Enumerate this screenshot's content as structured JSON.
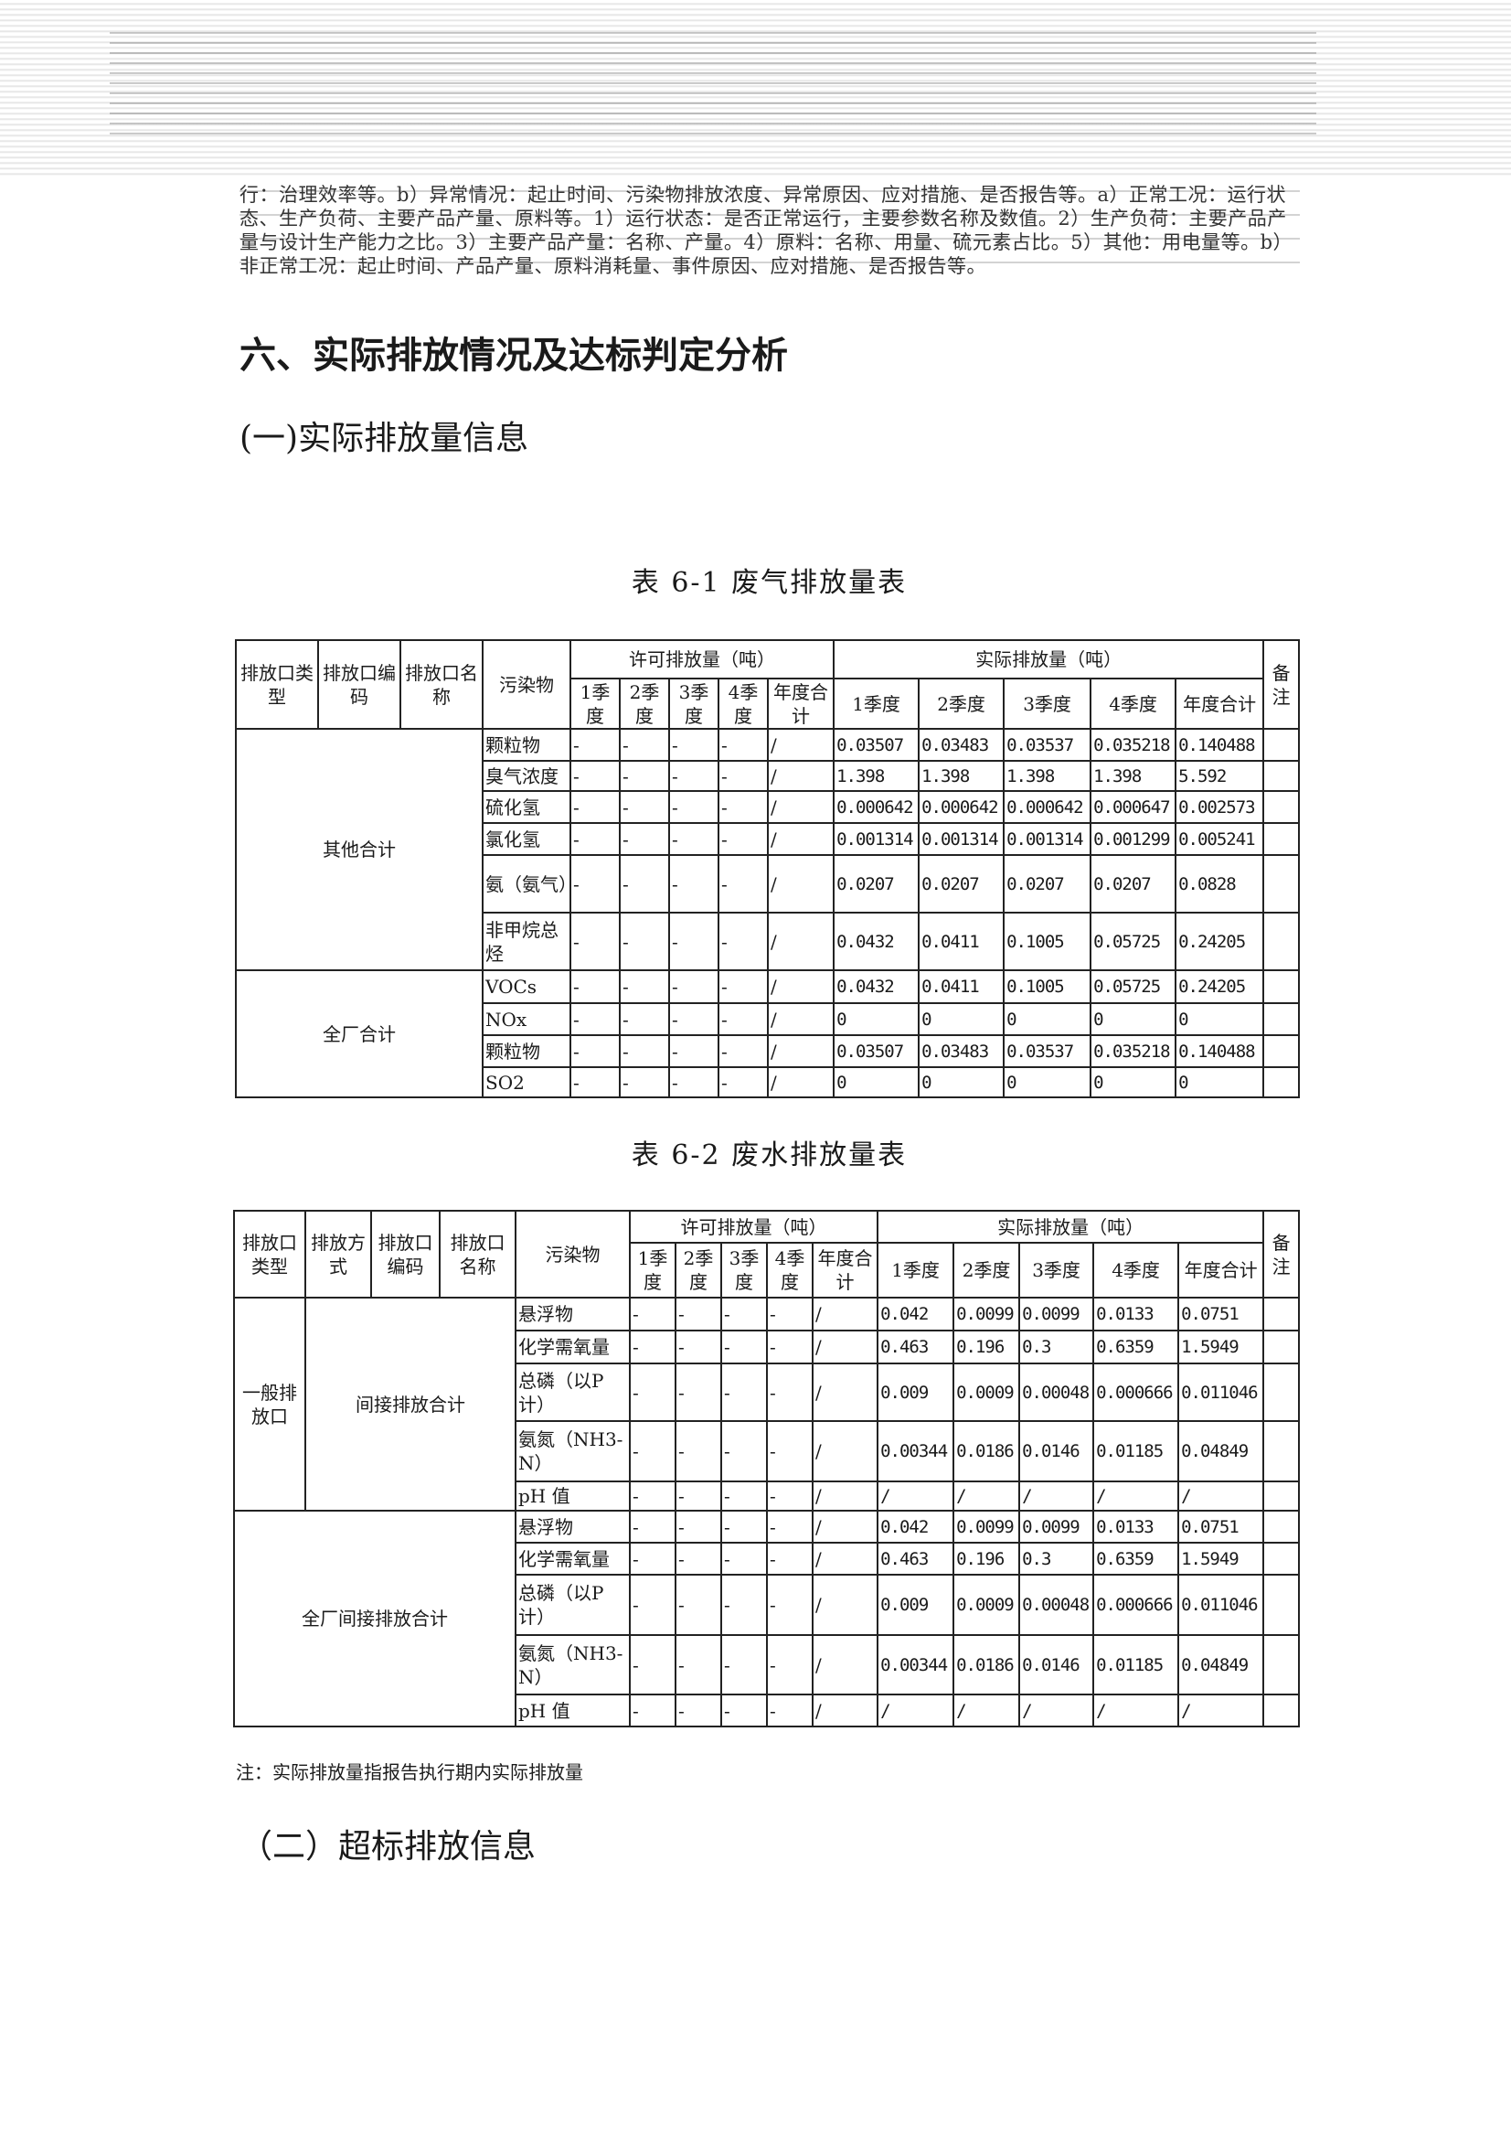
{
  "paragraph": "行：治理效率等。b）异常情况：起止时间、污染物排放浓度、异常原因、应对措施、是否报告等。a）正常工况：运行状态、生产负荷、主要产品产量、原料等。1）运行状态：是否正常运行，主要参数名称及数值。2）生产负荷：主要产品产量与设计生产能力之比。3）主要产品产量：名称、产量。4）原料：名称、用量、硫元素占比。5）其他：用电量等。b）非正常工况：起止时间、产品产量、原料消耗量、事件原因、应对措施、是否报告等。",
  "section_title": "六、实际排放情况及达标判定分析",
  "subsection_1": "(一)实际排放量信息",
  "table1": {
    "caption": "表 6-1  废气排放量表",
    "headers": {
      "type": "排放口类型",
      "code": "排放口编码",
      "name": "排放口名称",
      "pollutant": "污染物",
      "permit_group": "许可排放量（吨）",
      "actual_group": "实际排放量（吨）",
      "remark": "备注",
      "permit_cols": [
        "1季度",
        "2季度",
        "3季度",
        "4季度",
        "年度合计"
      ],
      "actual_cols": [
        "1季度",
        "2季度",
        "3季度",
        "4季度",
        "年度合计"
      ]
    },
    "groups": [
      {
        "label": "其他合计",
        "rows": [
          {
            "pollutant": "颗粒物",
            "permit": [
              "-",
              "-",
              "-",
              "-",
              "/"
            ],
            "actual": [
              "0.03507",
              "0.03483",
              "0.03537",
              "0.035218",
              "0.140488"
            ],
            "remark": ""
          },
          {
            "pollutant": "臭气浓度",
            "permit": [
              "-",
              "-",
              "-",
              "-",
              "/"
            ],
            "actual": [
              "1.398",
              "1.398",
              "1.398",
              "1.398",
              "5.592"
            ],
            "remark": ""
          },
          {
            "pollutant": "硫化氢",
            "permit": [
              "-",
              "-",
              "-",
              "-",
              "/"
            ],
            "actual": [
              "0.000642",
              "0.000642",
              "0.000642",
              "0.000647",
              "0.002573"
            ],
            "remark": ""
          },
          {
            "pollutant": "氯化氢",
            "permit": [
              "-",
              "-",
              "-",
              "-",
              "/"
            ],
            "actual": [
              "0.001314",
              "0.001314",
              "0.001314",
              "0.001299",
              "0.005241"
            ],
            "remark": ""
          },
          {
            "pollutant": "氨（氨气）",
            "permit": [
              "-",
              "-",
              "-",
              "-",
              "/"
            ],
            "actual": [
              "0.0207",
              "0.0207",
              "0.0207",
              "0.0207",
              "0.0828"
            ],
            "remark": ""
          },
          {
            "pollutant": "非甲烷总烃",
            "permit": [
              "-",
              "-",
              "-",
              "-",
              "/"
            ],
            "actual": [
              "0.0432",
              "0.0411",
              "0.1005",
              "0.05725",
              "0.24205"
            ],
            "remark": ""
          }
        ]
      },
      {
        "label": "全厂合计",
        "rows": [
          {
            "pollutant": "VOCs",
            "permit": [
              "-",
              "-",
              "-",
              "-",
              "/"
            ],
            "actual": [
              "0.0432",
              "0.0411",
              "0.1005",
              "0.05725",
              "0.24205"
            ],
            "remark": ""
          },
          {
            "pollutant": "NOx",
            "permit": [
              "-",
              "-",
              "-",
              "-",
              "/"
            ],
            "actual": [
              "0",
              "0",
              "0",
              "0",
              "0"
            ],
            "remark": ""
          },
          {
            "pollutant": "颗粒物",
            "permit": [
              "-",
              "-",
              "-",
              "-",
              "/"
            ],
            "actual": [
              "0.03507",
              "0.03483",
              "0.03537",
              "0.035218",
              "0.140488"
            ],
            "remark": ""
          },
          {
            "pollutant": "SO2",
            "permit": [
              "-",
              "-",
              "-",
              "-",
              "/"
            ],
            "actual": [
              "0",
              "0",
              "0",
              "0",
              "0"
            ],
            "remark": ""
          }
        ]
      }
    ]
  },
  "table2": {
    "caption": "表 6-2  废水排放量表",
    "headers": {
      "type": "排放口类型",
      "method": "排放方式",
      "code": "排放口编码",
      "name": "排放口名称",
      "pollutant": "污染物",
      "permit_group": "许可排放量（吨）",
      "actual_group": "实际排放量（吨）",
      "remark": "备注",
      "permit_cols": [
        "1季度",
        "2季度",
        "3季度",
        "4季度",
        "年度合计"
      ],
      "actual_cols": [
        "1季度",
        "2季度",
        "3季度",
        "4季度",
        "年度合计"
      ]
    },
    "groups": [
      {
        "type": "一般排放口",
        "method": "间接排放合计",
        "rows": [
          {
            "pollutant": "悬浮物",
            "permit": [
              "-",
              "-",
              "-",
              "-",
              "/"
            ],
            "actual": [
              "0.042",
              "0.0099",
              "0.0099",
              "0.0133",
              "0.0751"
            ],
            "remark": ""
          },
          {
            "pollutant": "化学需氧量",
            "permit": [
              "-",
              "-",
              "-",
              "-",
              "/"
            ],
            "actual": [
              "0.463",
              "0.196",
              "0.3",
              "0.6359",
              "1.5949"
            ],
            "remark": ""
          },
          {
            "pollutant": "总磷（以P计）",
            "permit": [
              "-",
              "-",
              "-",
              "-",
              "/"
            ],
            "actual": [
              "0.009",
              "0.0009",
              "0.00048",
              "0.000666",
              "0.011046"
            ],
            "remark": ""
          },
          {
            "pollutant": "氨氮（NH3-N）",
            "permit": [
              "-",
              "-",
              "-",
              "-",
              "/"
            ],
            "actual": [
              "0.00344",
              "0.0186",
              "0.0146",
              "0.01185",
              "0.04849"
            ],
            "remark": ""
          },
          {
            "pollutant": "pH 值",
            "permit": [
              "-",
              "-",
              "-",
              "-",
              "/"
            ],
            "actual": [
              "/",
              "/",
              "/",
              "/",
              "/"
            ],
            "remark": ""
          }
        ]
      },
      {
        "label": "全厂间接排放合计",
        "rows": [
          {
            "pollutant": "悬浮物",
            "permit": [
              "-",
              "-",
              "-",
              "-",
              "/"
            ],
            "actual": [
              "0.042",
              "0.0099",
              "0.0099",
              "0.0133",
              "0.0751"
            ],
            "remark": ""
          },
          {
            "pollutant": "化学需氧量",
            "permit": [
              "-",
              "-",
              "-",
              "-",
              "/"
            ],
            "actual": [
              "0.463",
              "0.196",
              "0.3",
              "0.6359",
              "1.5949"
            ],
            "remark": ""
          },
          {
            "pollutant": "总磷（以P计）",
            "permit": [
              "-",
              "-",
              "-",
              "-",
              "/"
            ],
            "actual": [
              "0.009",
              "0.0009",
              "0.00048",
              "0.000666",
              "0.011046"
            ],
            "remark": ""
          },
          {
            "pollutant": "氨氮（NH3-N）",
            "permit": [
              "-",
              "-",
              "-",
              "-",
              "/"
            ],
            "actual": [
              "0.00344",
              "0.0186",
              "0.0146",
              "0.01185",
              "0.04849"
            ],
            "remark": ""
          },
          {
            "pollutant": "pH 值",
            "permit": [
              "-",
              "-",
              "-",
              "-",
              "/"
            ],
            "actual": [
              "/",
              "/",
              "/",
              "/",
              "/"
            ],
            "remark": ""
          }
        ]
      }
    ]
  },
  "note": "注：实际排放量指报告执行期内实际排放量",
  "subsection_2": "（二）超标排放信息"
}
